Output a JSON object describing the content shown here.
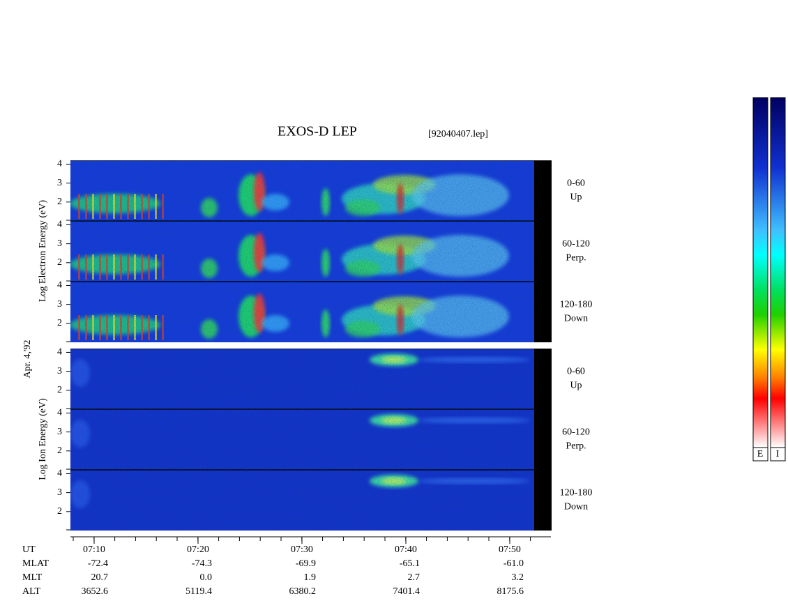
{
  "header": {
    "title": "EXOS-D LEP",
    "file": "[92040407.lep]"
  },
  "electron_group": {
    "axis_label": "Log Electron Energy (eV)",
    "panels": [
      {
        "ylim": [
          1,
          4.2
        ],
        "yticks": [
          2,
          3,
          4
        ],
        "side_label": [
          "0-60",
          "Up"
        ]
      },
      {
        "ylim": [
          1,
          4.2
        ],
        "yticks": [
          2,
          3,
          4
        ],
        "side_label": [
          "60-120",
          "Perp."
        ]
      },
      {
        "ylim": [
          1,
          4.2
        ],
        "yticks": [
          2,
          3,
          4
        ],
        "side_label": [
          "120-180",
          "Down"
        ]
      }
    ]
  },
  "date": "Apr. 4,'92",
  "ion_group": {
    "axis_label": "Log Ion Energy (eV)",
    "panels": [
      {
        "ylim": [
          1,
          4.2
        ],
        "yticks": [
          2,
          3,
          4
        ],
        "side_label": [
          "0-60",
          "Up"
        ]
      },
      {
        "ylim": [
          1,
          4.2
        ],
        "yticks": [
          2,
          3,
          4
        ],
        "side_label": [
          "60-120",
          "Perp."
        ]
      },
      {
        "ylim": [
          1,
          4.2
        ],
        "yticks": [
          2,
          3,
          4
        ],
        "side_label": [
          "120-180",
          "Down"
        ]
      }
    ]
  },
  "time_axis": {
    "row_labels": [
      "UT",
      "MLAT",
      "MLT",
      "ALT"
    ],
    "columns": [
      [
        "07:10",
        "-72.4",
        "20.7",
        "3652.6"
      ],
      [
        "07:20",
        "-74.3",
        "0.0",
        "5119.4"
      ],
      [
        "07:30",
        "-69.9",
        "1.9",
        "6380.2"
      ],
      [
        "07:40",
        "-65.1",
        "2.7",
        "7401.4"
      ],
      [
        "07:50",
        "-61.0",
        "3.2",
        "8175.6"
      ]
    ]
  },
  "colorbars": [
    "E",
    "I"
  ]
}
